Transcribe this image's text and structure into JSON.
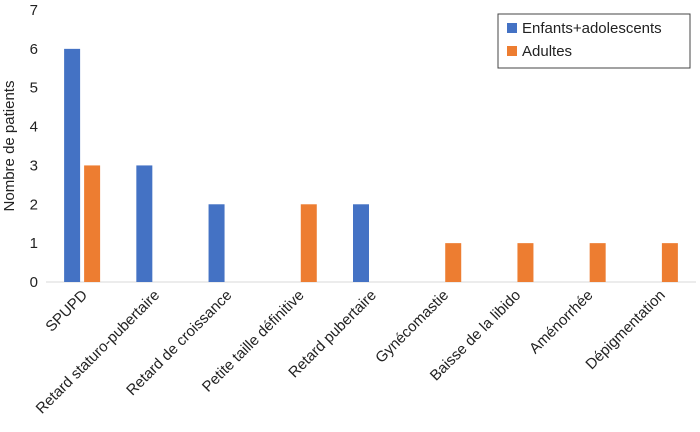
{
  "chart_data": {
    "type": "bar",
    "title": "",
    "xlabel": "",
    "ylabel": "Nombre de patients",
    "ylim": [
      0,
      7
    ],
    "yticks": [
      0,
      1,
      2,
      3,
      4,
      5,
      6,
      7
    ],
    "grid": false,
    "legend_position": "top-right",
    "categories": [
      "SPUPD",
      "Retard staturo-pubertaire",
      "Retard de croissance",
      "Petite taille définitive",
      "Retard pubertaire",
      "Gynécomastie",
      "Baisse de la libido",
      "Aménorrhée",
      "Dépigmentation"
    ],
    "series": [
      {
        "name": "Enfants+adolescents",
        "color": "#4472C4",
        "values": [
          6,
          3,
          2,
          0,
          2,
          0,
          0,
          0,
          0
        ]
      },
      {
        "name": "Adultes",
        "color": "#ED7D31",
        "values": [
          3,
          0,
          0,
          2,
          0,
          1,
          1,
          1,
          1
        ]
      }
    ]
  }
}
